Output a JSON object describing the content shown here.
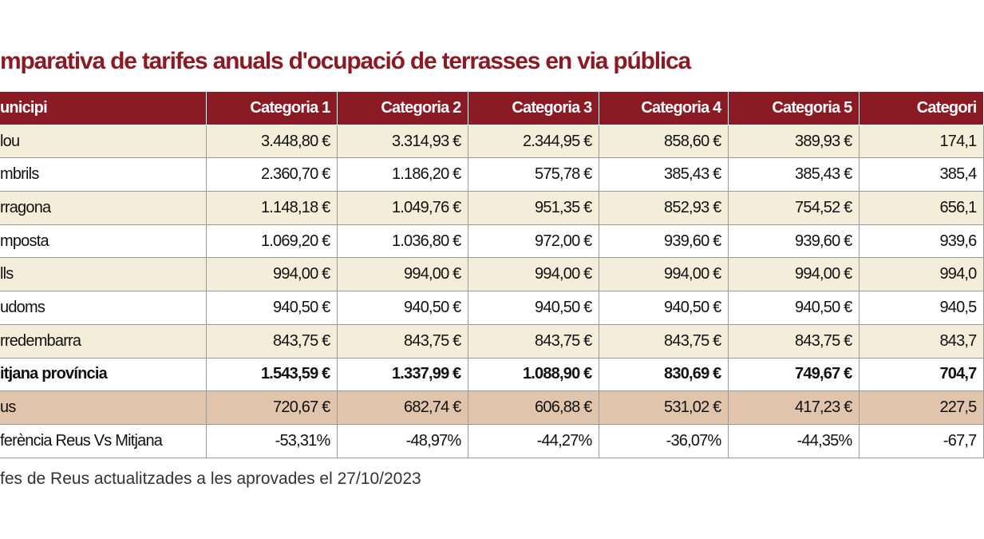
{
  "title": "mparativa de tarifes anuals d'ocupació de terrasses en via pública",
  "table": {
    "header": [
      "unicipi",
      "Categoria 1",
      "Categoria 2",
      "Categoria 3",
      "Categoria 4",
      "Categoria 5",
      "Categori"
    ],
    "rows": [
      [
        "lou",
        "3.448,80 €",
        "3.314,93 €",
        "2.344,95 €",
        "858,60 €",
        "389,93 €",
        "174,1"
      ],
      [
        "mbrils",
        "2.360,70 €",
        "1.186,20 €",
        "575,78 €",
        "385,43 €",
        "385,43 €",
        "385,4"
      ],
      [
        "rragona",
        "1.148,18 €",
        "1.049,76 €",
        "951,35 €",
        "852,93 €",
        "754,52 €",
        "656,1"
      ],
      [
        "mposta",
        "1.069,20 €",
        "1.036,80 €",
        "972,00 €",
        "939,60 €",
        "939,60 €",
        "939,6"
      ],
      [
        "lls",
        "994,00 €",
        "994,00 €",
        "994,00 €",
        "994,00 €",
        "994,00 €",
        "994,0"
      ],
      [
        "udoms",
        "940,50 €",
        "940,50 €",
        "940,50 €",
        "940,50 €",
        "940,50 €",
        "940,5"
      ],
      [
        "rredembarra",
        "843,75 €",
        "843,75 €",
        "843,75 €",
        "843,75 €",
        "843,75 €",
        "843,7"
      ],
      [
        "itjana província",
        "1.543,59 €",
        "1.337,99 €",
        "1.088,90 €",
        "830,69 €",
        "749,67 €",
        "704,7"
      ],
      [
        "us",
        "720,67 €",
        "682,74 €",
        "606,88 €",
        "531,02 €",
        "417,23 €",
        "227,5"
      ],
      [
        "ferència Reus Vs Mitjana",
        "-53,31%",
        "-48,97%",
        "-44,27%",
        "-36,07%",
        "-44,35%",
        "-67,7"
      ]
    ]
  },
  "footnote": "fes de Reus actualitzades a les aprovades el 27/10/2023"
}
